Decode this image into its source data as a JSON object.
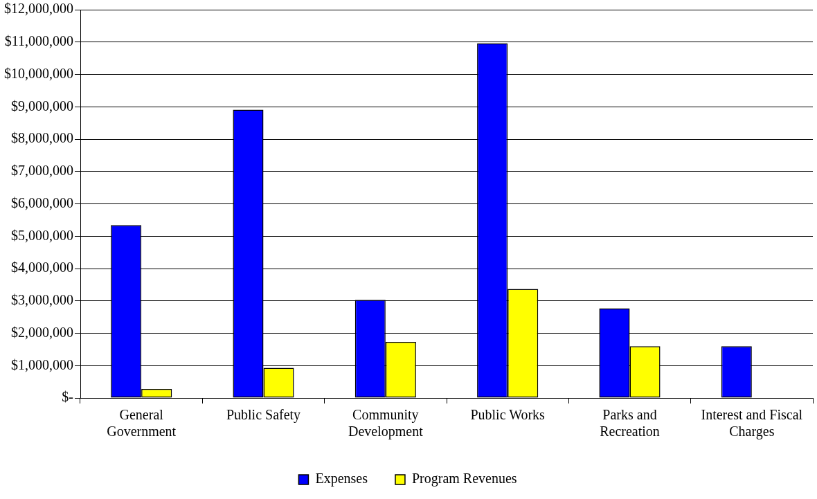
{
  "chart_data": {
    "type": "bar",
    "categories": [
      "General Government",
      "Public Safety",
      "Community Development",
      "Public Works",
      "Parks and Recreation",
      "Interest and Fiscal Charges"
    ],
    "series": [
      {
        "name": "Expenses",
        "color": "#0000ff",
        "values": [
          5340000,
          8910000,
          3030000,
          10960000,
          2770000,
          1600000
        ]
      },
      {
        "name": "Program Revenues",
        "color": "#ffff00",
        "values": [
          280000,
          930000,
          1730000,
          3370000,
          1600000,
          0
        ]
      }
    ],
    "ylim": [
      0,
      12000000
    ],
    "yticks": [
      {
        "value": 0,
        "label": "$-"
      },
      {
        "value": 1000000,
        "label": "$1,000,000"
      },
      {
        "value": 2000000,
        "label": "$2,000,000"
      },
      {
        "value": 3000000,
        "label": "$3,000,000"
      },
      {
        "value": 4000000,
        "label": "$4,000,000"
      },
      {
        "value": 5000000,
        "label": "$5,000,000"
      },
      {
        "value": 6000000,
        "label": "$6,000,000"
      },
      {
        "value": 7000000,
        "label": "$7,000,000"
      },
      {
        "value": 8000000,
        "label": "$8,000,000"
      },
      {
        "value": 9000000,
        "label": "$9,000,000"
      },
      {
        "value": 10000000,
        "label": "$10,000,000"
      },
      {
        "value": 11000000,
        "label": "$11,000,000"
      },
      {
        "value": 12000000,
        "label": "$12,000,000"
      }
    ],
    "grid": "y",
    "legend": "bottom"
  }
}
